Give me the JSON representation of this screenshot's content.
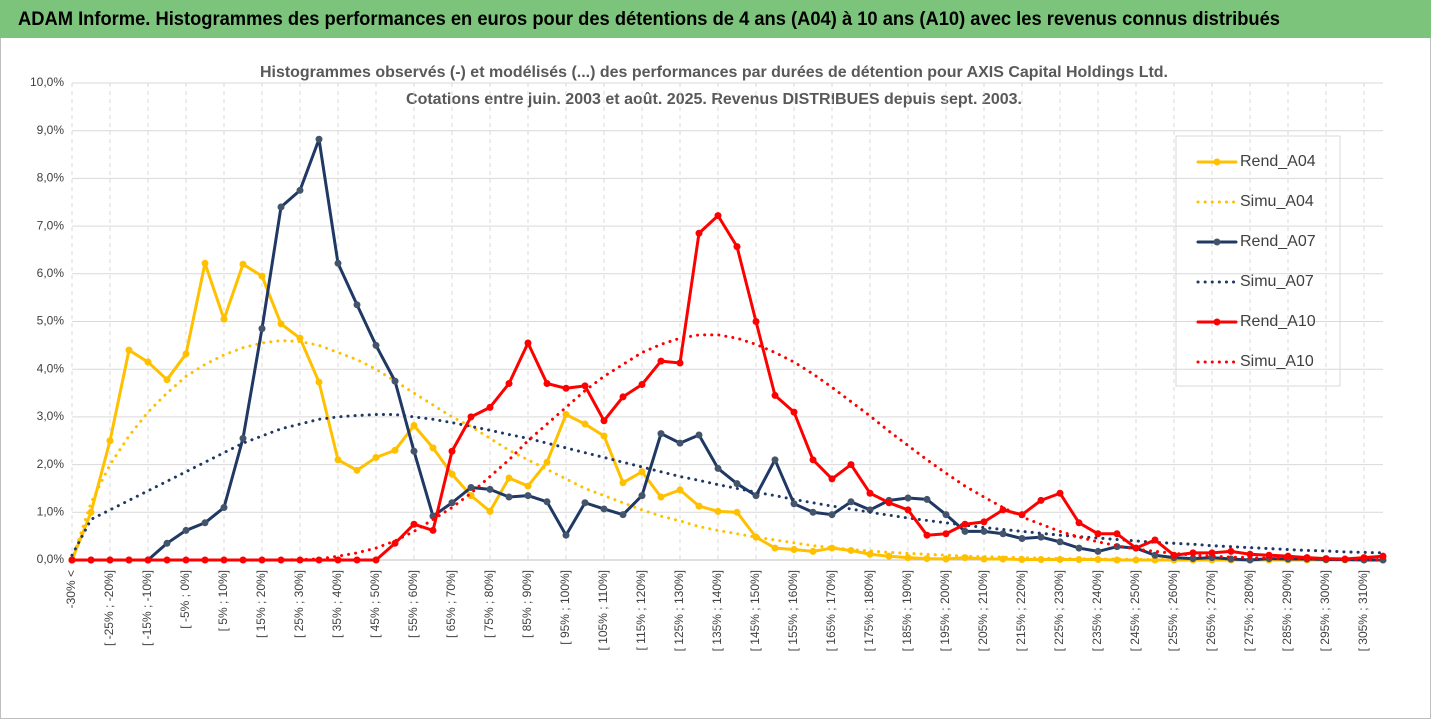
{
  "chart_data": {
    "type": "line",
    "title": "ADAM Informe. Histogrammes des performances en euros pour des détentions de 4 ans (A04) à 10 ans (A10) avec les revenus connus distribués",
    "subtitle": [
      "Histogrammes observés (-) et modélisés (...) des performances par durées de détention pour AXIS Capital Holdings Ltd.",
      "Cotations entre juin. 2003 et août. 2025. Revenus DISTRIBUES depuis sept. 2003."
    ],
    "categories": [
      "-30% <",
      null,
      "[ -25% ; -20%]",
      null,
      "[ -15% ; -10%]",
      null,
      "[ -5% ; 0%]",
      null,
      "[ 5% ; 10%]",
      null,
      "[ 15% ; 20%]",
      null,
      "[ 25% ; 30%]",
      null,
      "[ 35% ; 40%]",
      null,
      "[ 45% ; 50%]",
      null,
      "[ 55% ; 60%]",
      null,
      "[ 65% ; 70%]",
      null,
      "[ 75% ; 80%]",
      null,
      "[ 85% ; 90%]",
      null,
      "[ 95% ; 100%]",
      null,
      "[ 105% ; 110%]",
      null,
      "[ 115% ; 120%]",
      null,
      "[ 125% ; 130%]",
      null,
      "[ 135% ; 140%]",
      null,
      "[ 145% ; 150%]",
      null,
      "[ 155% ; 160%]",
      null,
      "[ 165% ; 170%]",
      null,
      "[ 175% ; 180%]",
      null,
      "[ 185% ; 190%]",
      null,
      "[ 195% ; 200%]",
      null,
      "[ 205% ; 210%]",
      null,
      "[ 215% ; 220%]",
      null,
      "[ 225% ; 230%]",
      null,
      "[ 235% ; 240%]",
      null,
      "[ 245% ; 250%]",
      null,
      "[ 255% ; 260%]",
      null,
      "[ 265% ; 270%]",
      null,
      "[ 275% ; 280%]",
      null,
      "[ 285% ; 290%]",
      null,
      "[ 295% ; 300%]",
      null,
      "[ 305% ; 310%]",
      null
    ],
    "series": [
      {
        "name": "Rend_A04",
        "color": "#ffc000",
        "style": "solid",
        "markers": true,
        "values": [
          0,
          1.0,
          2.5,
          4.4,
          4.15,
          3.78,
          4.32,
          6.22,
          5.05,
          6.2,
          5.95,
          4.95,
          4.65,
          3.73,
          2.1,
          1.88,
          2.15,
          2.3,
          2.82,
          2.35,
          1.8,
          1.35,
          1.02,
          1.72,
          1.55,
          2.05,
          3.05,
          2.85,
          2.6,
          1.62,
          1.85,
          1.32,
          1.47,
          1.13,
          1.02,
          1.0,
          0.48,
          0.25,
          0.22,
          0.18,
          0.25,
          0.2,
          0.12,
          0.08,
          0.05,
          0.03,
          0.02,
          0.05,
          0.02,
          0.02,
          0.01,
          0.01,
          0.01,
          0.01,
          0.01,
          0,
          0,
          0,
          0,
          0,
          0,
          0,
          0,
          0,
          0,
          0,
          0,
          0,
          0,
          0
        ]
      },
      {
        "name": "Simu_A04",
        "color": "#ffc000",
        "style": "dotted",
        "markers": false,
        "values": [
          0,
          1.2,
          2.0,
          2.6,
          3.1,
          3.5,
          3.85,
          4.1,
          4.3,
          4.45,
          4.55,
          4.6,
          4.58,
          4.5,
          4.35,
          4.2,
          4.0,
          3.75,
          3.5,
          3.25,
          3.0,
          2.8,
          2.55,
          2.3,
          2.1,
          1.9,
          1.7,
          1.5,
          1.35,
          1.2,
          1.05,
          0.92,
          0.82,
          0.7,
          0.62,
          0.55,
          0.48,
          0.42,
          0.36,
          0.3,
          0.26,
          0.22,
          0.19,
          0.16,
          0.14,
          0.12,
          0.1,
          0.08,
          0.07,
          0.06,
          0.05,
          0.04,
          0.03,
          0.03,
          0.02,
          0.02,
          0.01,
          0.01,
          0.01,
          0.01,
          0,
          0,
          0,
          0,
          0,
          0,
          0,
          0,
          0,
          0
        ]
      },
      {
        "name": "Rend_A07",
        "color": "#1f3864",
        "style": "solid",
        "markers": true,
        "values": [
          0,
          0,
          0,
          0,
          0,
          0.35,
          0.62,
          0.78,
          1.1,
          2.55,
          4.85,
          7.4,
          7.75,
          8.82,
          6.22,
          5.35,
          4.5,
          3.75,
          2.28,
          0.92,
          1.2,
          1.52,
          1.48,
          1.32,
          1.35,
          1.22,
          0.52,
          1.2,
          1.07,
          0.95,
          1.35,
          2.65,
          2.45,
          2.62,
          1.92,
          1.6,
          1.35,
          2.1,
          1.18,
          1.0,
          0.95,
          1.22,
          1.05,
          1.25,
          1.3,
          1.27,
          0.95,
          0.6,
          0.6,
          0.55,
          0.45,
          0.48,
          0.38,
          0.25,
          0.18,
          0.28,
          0.25,
          0.1,
          0.05,
          0.03,
          0.05,
          0.02,
          0,
          0.03,
          0.02,
          0.02,
          0.01,
          0.01,
          0,
          0
        ]
      },
      {
        "name": "Simu_A07",
        "color": "#1f3864",
        "style": "dotted",
        "markers": false,
        "values": [
          0.1,
          0.85,
          1.05,
          1.25,
          1.45,
          1.65,
          1.85,
          2.05,
          2.25,
          2.45,
          2.6,
          2.75,
          2.85,
          2.95,
          3.0,
          3.03,
          3.05,
          3.05,
          3.0,
          2.95,
          2.88,
          2.8,
          2.72,
          2.63,
          2.55,
          2.45,
          2.35,
          2.25,
          2.15,
          2.05,
          1.95,
          1.85,
          1.75,
          1.67,
          1.58,
          1.5,
          1.42,
          1.35,
          1.27,
          1.2,
          1.13,
          1.07,
          1.0,
          0.94,
          0.88,
          0.83,
          0.78,
          0.73,
          0.68,
          0.64,
          0.6,
          0.56,
          0.52,
          0.49,
          0.46,
          0.43,
          0.4,
          0.37,
          0.35,
          0.33,
          0.3,
          0.28,
          0.26,
          0.24,
          0.22,
          0.2,
          0.19,
          0.17,
          0.16,
          0.15
        ]
      },
      {
        "name": "Rend_A10",
        "color": "#ff0000",
        "style": "solid",
        "markers": true,
        "values": [
          0,
          0,
          0,
          0,
          0,
          0,
          0,
          0,
          0,
          0,
          0,
          0,
          0,
          0,
          0,
          0,
          0,
          0.35,
          0.75,
          0.62,
          2.28,
          3.0,
          3.2,
          3.7,
          4.55,
          3.7,
          3.6,
          3.65,
          2.92,
          3.42,
          3.68,
          4.17,
          4.13,
          6.85,
          7.22,
          6.57,
          5.0,
          3.45,
          3.1,
          2.1,
          1.7,
          2.0,
          1.4,
          1.2,
          1.05,
          0.52,
          0.55,
          0.75,
          0.8,
          1.05,
          0.95,
          1.25,
          1.4,
          0.78,
          0.55,
          0.55,
          0.25,
          0.42,
          0.1,
          0.15,
          0.15,
          0.18,
          0.12,
          0.1,
          0.08,
          0.05,
          0.03,
          0.02,
          0.05,
          0.08
        ]
      },
      {
        "name": "Simu_A10",
        "color": "#ff0000",
        "style": "dotted",
        "markers": false,
        "values": [
          0,
          0,
          0,
          0,
          0,
          0,
          0,
          0,
          0,
          0,
          0,
          0,
          0.01,
          0.02,
          0.08,
          0.15,
          0.25,
          0.4,
          0.6,
          0.85,
          1.1,
          1.4,
          1.75,
          2.1,
          2.5,
          2.85,
          3.2,
          3.55,
          3.85,
          4.1,
          4.35,
          4.52,
          4.65,
          4.72,
          4.72,
          4.65,
          4.52,
          4.35,
          4.15,
          3.9,
          3.62,
          3.32,
          3.02,
          2.7,
          2.4,
          2.1,
          1.82,
          1.55,
          1.32,
          1.1,
          0.9,
          0.75,
          0.6,
          0.48,
          0.38,
          0.3,
          0.23,
          0.18,
          0.14,
          0.1,
          0.08,
          0.06,
          0.05,
          0.04,
          0.03,
          0.02,
          0.02,
          0.01,
          0.01,
          0.01
        ]
      }
    ],
    "ylim": [
      0,
      10
    ],
    "yticks": [
      {
        "value": 0,
        "label": "0,0%"
      },
      {
        "value": 1,
        "label": "1,0%"
      },
      {
        "value": 2,
        "label": "2,0%"
      },
      {
        "value": 3,
        "label": "3,0%"
      },
      {
        "value": 4,
        "label": "4,0%"
      },
      {
        "value": 5,
        "label": "5,0%"
      },
      {
        "value": 6,
        "label": "6,0%"
      },
      {
        "value": 7,
        "label": "7,0%"
      },
      {
        "value": 8,
        "label": "8,0%"
      },
      {
        "value": 9,
        "label": "9,0%"
      },
      {
        "value": 10,
        "label": "10,0%"
      }
    ],
    "grid": true,
    "legend": "right"
  }
}
